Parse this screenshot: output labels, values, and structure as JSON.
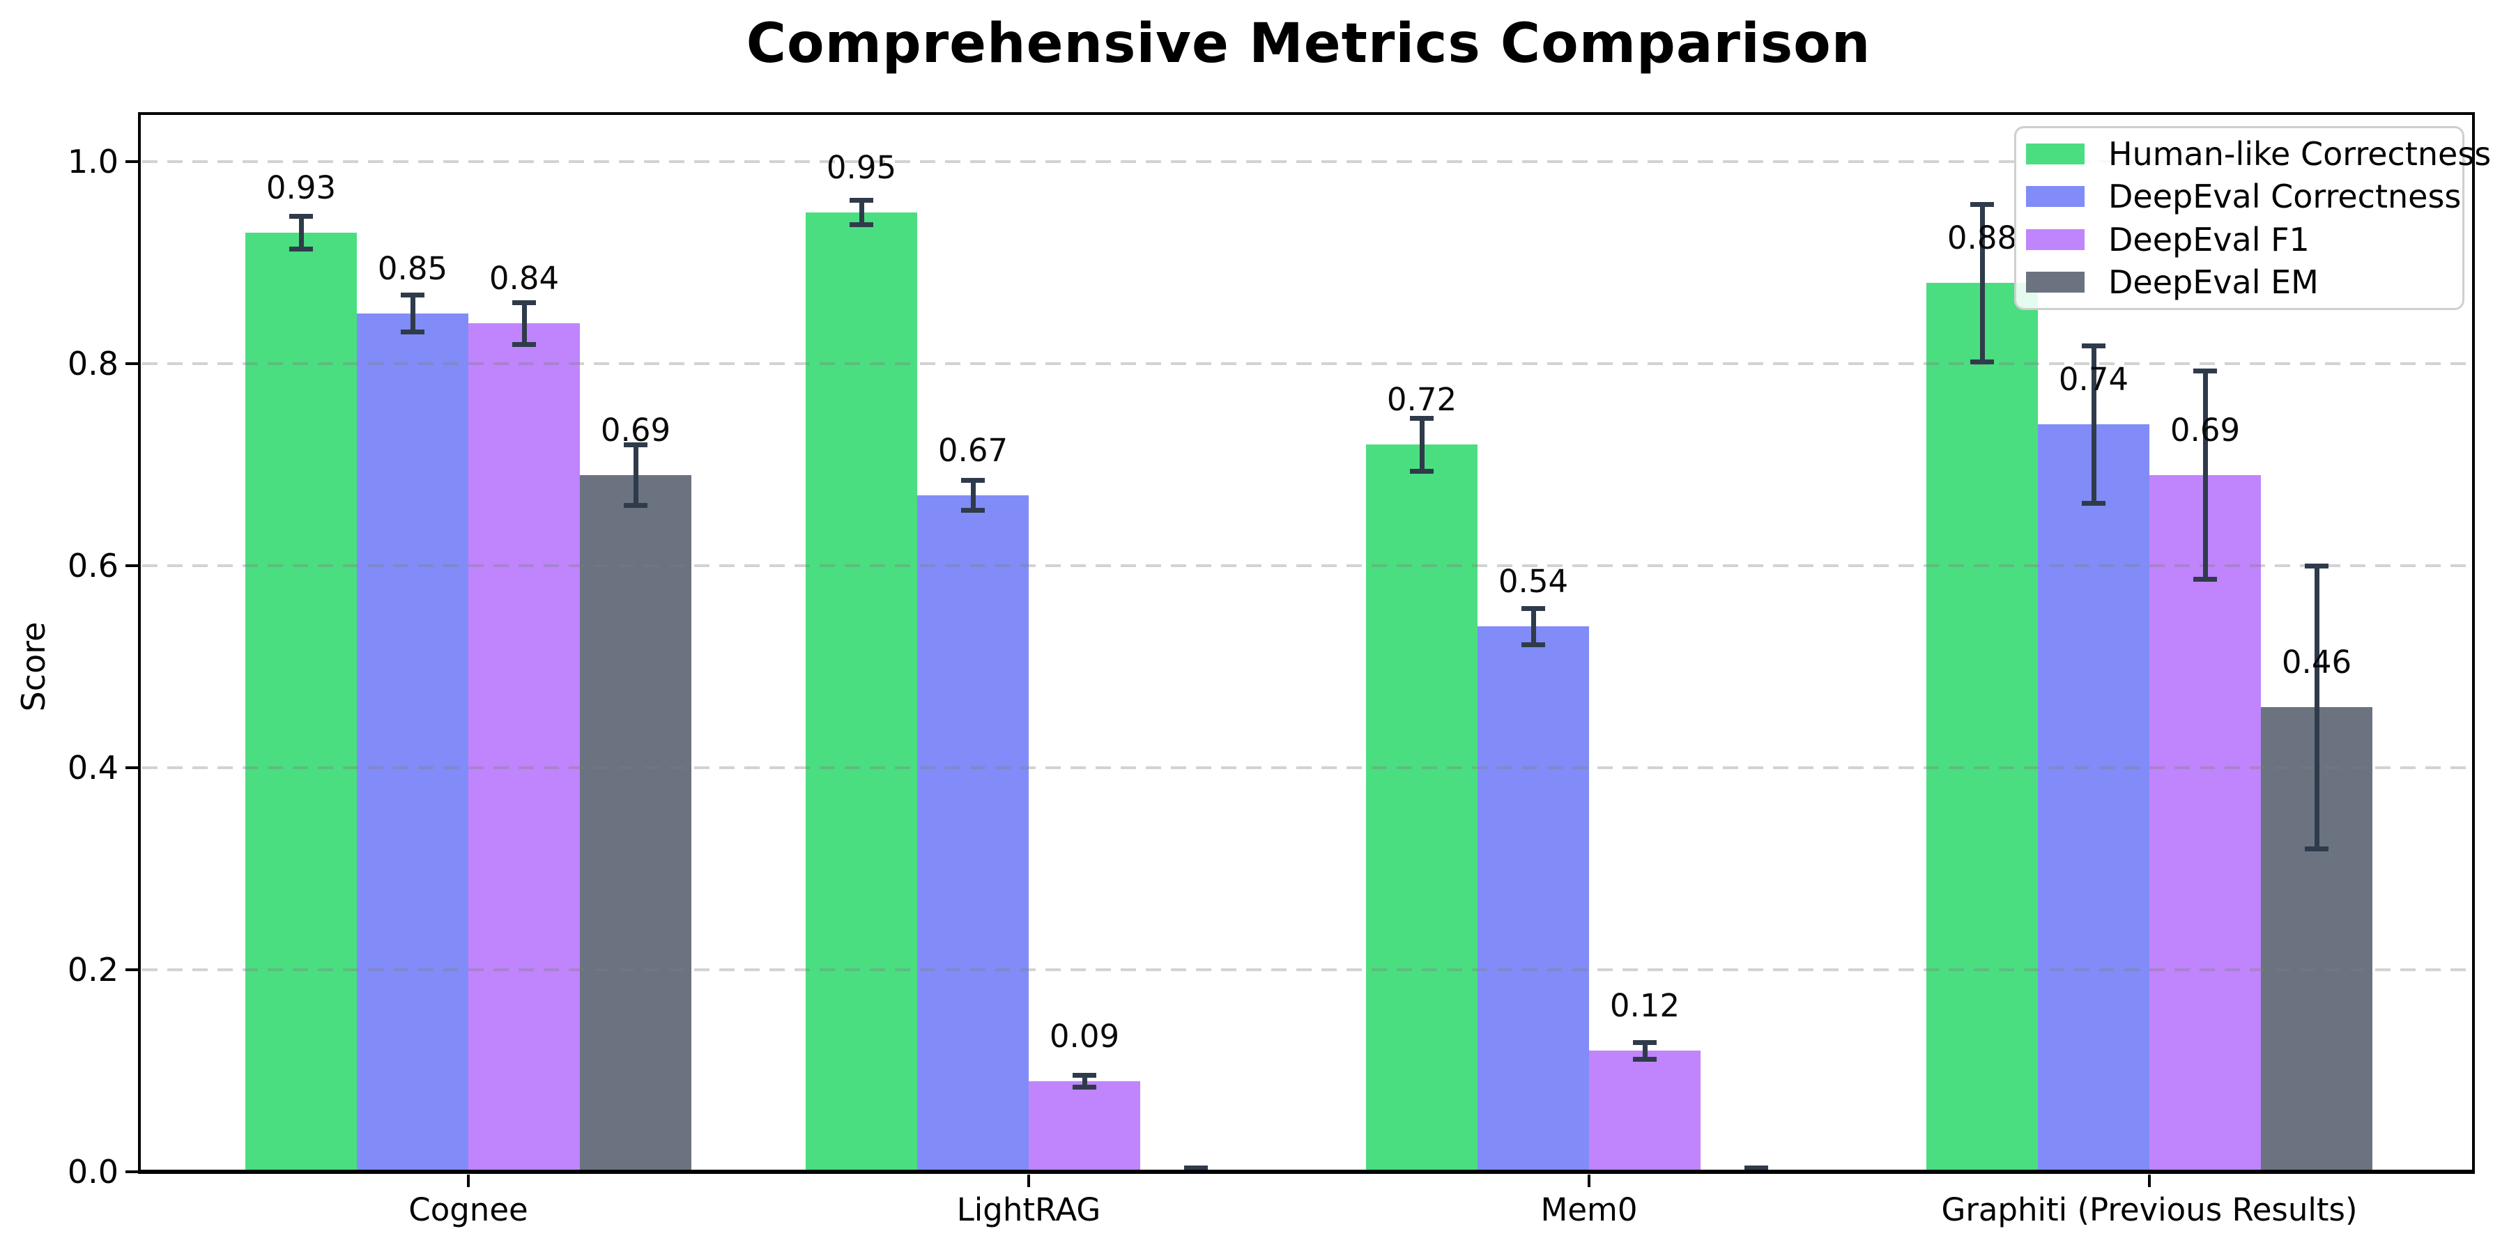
{
  "title": "Comprehensive Metrics Comparison",
  "chart_data": {
    "type": "bar",
    "title": "Comprehensive Metrics Comparison",
    "xlabel": "",
    "ylabel": "Score",
    "categories": [
      "Cognee",
      "LightRAG",
      "Mem0",
      "Graphiti (Previous Results)"
    ],
    "series": [
      {
        "name": "Human-like Correctness",
        "color": "#4ade80",
        "values": [
          0.93,
          0.95,
          0.72,
          0.88
        ],
        "errors": [
          0.016,
          0.012,
          0.026,
          0.078
        ],
        "bar_labels": [
          "0.93",
          "0.95",
          "0.72",
          "0.88"
        ]
      },
      {
        "name": "DeepEval Correctness",
        "color": "#818cf8",
        "values": [
          0.85,
          0.67,
          0.54,
          0.74
        ],
        "errors": [
          0.018,
          0.015,
          0.018,
          0.078
        ],
        "bar_labels": [
          "0.85",
          "0.67",
          "0.54",
          "0.74"
        ]
      },
      {
        "name": "DeepEval F1",
        "color": "#c084fc",
        "values": [
          0.84,
          0.09,
          0.12,
          0.69
        ],
        "errors": [
          0.021,
          0.006,
          0.008,
          0.103
        ],
        "bar_labels": [
          "0.84",
          "0.09",
          "0.12",
          "0.69"
        ]
      },
      {
        "name": "DeepEval EM",
        "color": "#6b7280",
        "values": [
          0.69,
          0.0,
          0.0,
          0.46
        ],
        "errors": [
          0.03,
          0.004,
          0.004,
          0.14
        ],
        "bar_labels": [
          "0.69",
          "",
          "",
          "0.46"
        ]
      }
    ],
    "yticks": [
      "0.0",
      "0.2",
      "0.4",
      "0.6",
      "0.8",
      "1.0"
    ],
    "ytick_values": [
      0.0,
      0.2,
      0.4,
      0.6,
      0.8,
      1.0
    ],
    "ylim": [
      0,
      1.048
    ],
    "grid": "horizontal-dashed",
    "legend_position": "upper-right",
    "error_bar_color": "#2f3b4a"
  }
}
